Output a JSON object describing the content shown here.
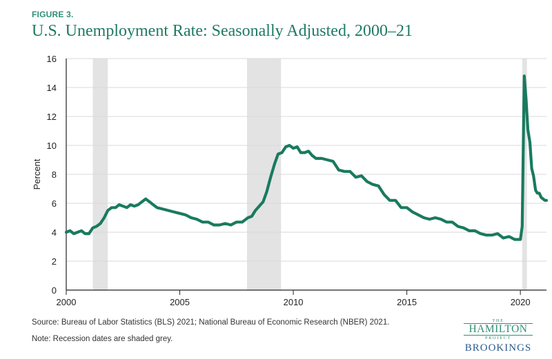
{
  "figure": {
    "label": "FIGURE 3.",
    "title": "U.S. Unemployment Rate: Seasonally Adjusted, 2000–21"
  },
  "footer": {
    "source": "Source:  Bureau of Labor Statistics (BLS) 2021; National Bureau of Economic Research (NBER) 2021.",
    "note": "Note: Recession dates are shaded grey."
  },
  "logo": {
    "the": "THE",
    "hamilton": "HAMILTON",
    "project": "PROJECT",
    "brookings": "BROOKINGS"
  },
  "colors": {
    "line": "#1a7a5e",
    "recession": "#e3e3e3",
    "grid": "#d9d9d9",
    "title": "#1f7a63",
    "brookings": "#2b5a8a"
  },
  "chart_data": {
    "type": "line",
    "ylabel": "Percent",
    "xlabel": "",
    "xlim": [
      2000,
      2021.15
    ],
    "ylim": [
      0,
      16
    ],
    "yticks": [
      0,
      2,
      4,
      6,
      8,
      10,
      12,
      14,
      16
    ],
    "xticks": [
      2000,
      2005,
      2010,
      2015,
      2020
    ],
    "grid": "horizontal",
    "recessions": [
      [
        2001.17,
        2001.83
      ],
      [
        2007.96,
        2009.46
      ],
      [
        2020.08,
        2020.29
      ]
    ],
    "series": [
      {
        "x": [
          2000.0,
          2000.17,
          2000.33,
          2000.5,
          2000.67,
          2000.83,
          2001.0,
          2001.17,
          2001.33,
          2001.5,
          2001.67,
          2001.83,
          2002.0,
          2002.17,
          2002.33,
          2002.5,
          2002.67,
          2002.83,
          2003.0,
          2003.17,
          2003.33,
          2003.5,
          2003.67,
          2003.83,
          2004.0,
          2004.25,
          2004.5,
          2004.75,
          2005.0,
          2005.25,
          2005.5,
          2005.75,
          2006.0,
          2006.25,
          2006.5,
          2006.75,
          2007.0,
          2007.25,
          2007.5,
          2007.75,
          2008.0,
          2008.17,
          2008.33,
          2008.5,
          2008.67,
          2008.83,
          2009.0,
          2009.17,
          2009.33,
          2009.5,
          2009.67,
          2009.83,
          2010.0,
          2010.17,
          2010.33,
          2010.5,
          2010.67,
          2010.83,
          2011.0,
          2011.25,
          2011.5,
          2011.75,
          2012.0,
          2012.25,
          2012.5,
          2012.75,
          2013.0,
          2013.25,
          2013.5,
          2013.75,
          2014.0,
          2014.25,
          2014.5,
          2014.75,
          2015.0,
          2015.25,
          2015.5,
          2015.75,
          2016.0,
          2016.25,
          2016.5,
          2016.75,
          2017.0,
          2017.25,
          2017.5,
          2017.75,
          2018.0,
          2018.25,
          2018.5,
          2018.75,
          2019.0,
          2019.25,
          2019.5,
          2019.75,
          2020.0,
          2020.08,
          2020.17,
          2020.25,
          2020.33,
          2020.42,
          2020.5,
          2020.58,
          2020.67,
          2020.75,
          2020.83,
          2020.92,
          2021.0,
          2021.08,
          2021.15
        ],
        "values": [
          4.0,
          4.1,
          3.9,
          4.0,
          4.1,
          3.9,
          3.9,
          4.3,
          4.4,
          4.6,
          5.0,
          5.5,
          5.7,
          5.7,
          5.9,
          5.8,
          5.7,
          5.9,
          5.8,
          5.9,
          6.1,
          6.3,
          6.1,
          5.9,
          5.7,
          5.6,
          5.5,
          5.4,
          5.3,
          5.2,
          5.0,
          4.9,
          4.7,
          4.7,
          4.5,
          4.5,
          4.6,
          4.5,
          4.7,
          4.7,
          5.0,
          5.1,
          5.5,
          5.8,
          6.1,
          6.8,
          7.8,
          8.7,
          9.4,
          9.5,
          9.9,
          10.0,
          9.8,
          9.9,
          9.5,
          9.5,
          9.6,
          9.3,
          9.1,
          9.1,
          9.0,
          8.9,
          8.3,
          8.2,
          8.2,
          7.8,
          7.9,
          7.5,
          7.3,
          7.2,
          6.6,
          6.2,
          6.2,
          5.7,
          5.7,
          5.4,
          5.2,
          5.0,
          4.9,
          5.0,
          4.9,
          4.7,
          4.7,
          4.4,
          4.3,
          4.1,
          4.1,
          3.9,
          3.8,
          3.8,
          3.9,
          3.6,
          3.7,
          3.5,
          3.5,
          4.4,
          14.8,
          13.2,
          11.1,
          10.2,
          8.4,
          7.9,
          6.9,
          6.7,
          6.7,
          6.4,
          6.3,
          6.2,
          6.2
        ]
      }
    ]
  }
}
